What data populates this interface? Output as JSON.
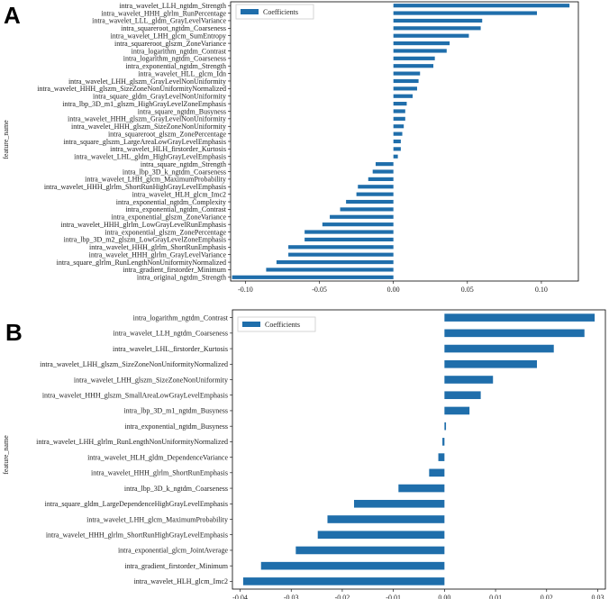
{
  "colors": {
    "bar": "#1f6eab",
    "axis": "#000000"
  },
  "chart_data": [
    {
      "panel": "A",
      "type": "bar",
      "orientation": "horizontal",
      "legend": "Coefficients",
      "legend_position": "top-left",
      "ylabel": "feature_name",
      "xlim": [
        -0.11,
        0.125
      ],
      "xticks": [
        -0.1,
        -0.05,
        0.0,
        0.05,
        0.1
      ],
      "xtick_labels": [
        "-0.10",
        "-0.05",
        "0.00",
        "0.05",
        "0.10"
      ],
      "categories": [
        "intra_wavelet_LLH_ngtdm_Strength",
        "intra_wavelet_HHH_glrlm_RunPercentage",
        "intra_wavelet_LLL_gldm_GrayLevelVariance",
        "intra_squareroot_ngtdm_Coarseness",
        "intra_wavelet_LHH_glcm_SumEntropy",
        "intra_squareroot_glszm_ZoneVariance",
        "intra_logarithm_ngtdm_Contrast",
        "intra_logarithm_ngtdm_Coarseness",
        "intra_exponential_ngtdm_Strength",
        "intra_wavelet_HLL_glcm_Idn",
        "intra_wavelet_LHH_glszm_GrayLevelNonUniformity",
        "intra_wavelet_HHH_glszm_SizeZoneNonUniformityNormalized",
        "intra_square_gldm_GrayLevelNonUniformity",
        "intra_lbp_3D_m1_glszm_HighGrayLevelZoneEmphasis",
        "intra_square_ngtdm_Busyness",
        "intra_wavelet_HHH_glszm_GrayLevelNonUniformity",
        "intra_wavelet_HHH_glszm_SizeZoneNonUniformity",
        "intra_squareroot_glszm_ZonePercentage",
        "intra_square_glszm_LargeAreaLowGrayLevelEmphasis",
        "intra_wavelet_HLH_firstorder_Kurtosis",
        "intra_wavelet_LHL_gldm_HighGrayLevelEmphasis",
        "intra_square_ngtdm_Strength",
        "intra_lbp_3D_k_ngtdm_Coarseness",
        "intra_wavelet_LHH_glcm_MaximumProbability",
        "intra_wavelet_HHH_glrlm_ShortRunHighGrayLevelEmphasis",
        "intra_wavelet_HLH_glcm_Imc2",
        "intra_exponential_ngtdm_Complexity",
        "intra_exponential_ngtdm_Contrast",
        "intra_exponential_glszm_ZoneVariance",
        "intra_wavelet_HHH_glrlm_LowGrayLevelRunEmphasis",
        "intra_exponential_glszm_ZonePercentage",
        "intra_lbp_3D_m2_glszm_LowGrayLevelZoneEmphasis",
        "intra_wavelet_HHH_glrlm_ShortRunEmphasis",
        "intra_wavelet_HHH_glrlm_GrayLevelVariance",
        "intra_square_glrlm_RunLengthNonUniformityNormalized",
        "intra_gradient_firstorder_Minimum",
        "intra_original_ngtdm_Strength"
      ],
      "values": [
        0.119,
        0.097,
        0.06,
        0.059,
        0.051,
        0.038,
        0.036,
        0.028,
        0.027,
        0.018,
        0.017,
        0.016,
        0.013,
        0.009,
        0.008,
        0.008,
        0.007,
        0.006,
        0.005,
        0.005,
        0.003,
        -0.012,
        -0.014,
        -0.017,
        -0.024,
        -0.025,
        -0.032,
        -0.036,
        -0.043,
        -0.048,
        -0.06,
        -0.06,
        -0.071,
        -0.071,
        -0.079,
        -0.086,
        -0.109
      ]
    },
    {
      "panel": "B",
      "type": "bar",
      "orientation": "horizontal",
      "legend": "Coefficients",
      "legend_position": "top-left",
      "ylabel": "feature_name",
      "xlim": [
        -0.0415,
        0.0315
      ],
      "xticks": [
        -0.04,
        -0.03,
        -0.02,
        -0.01,
        0.0,
        0.01,
        0.02,
        0.03
      ],
      "xtick_labels": [
        "-0.04",
        "-0.03",
        "-0.02",
        "-0.01",
        "0.00",
        "0.01",
        "0.02",
        "0.03"
      ],
      "categories": [
        "intra_logarithm_ngtdm_Contrast",
        "intra_wavelet_LLH_ngtdm_Coarseness",
        "intra_wavelet_LHL_firstorder_Kurtosis",
        "intra_wavelet_LHH_glszm_SizeZoneNonUniformityNormalized",
        "intra_wavelet_LHH_glszm_SizeZoneNonUniformity",
        "intra_wavelet_HHH_glszm_SmallAreaLowGrayLevelEmphasis",
        "intra_lbp_3D_m1_ngtdm_Busyness",
        "intra_exponential_ngtdm_Busyness",
        "intra_wavelet_LHH_glrlm_RunLengthNonUniformityNormalized",
        "intra_wavelet_HLH_gldm_DependenceVariance",
        "intra_wavelet_HHH_glrlm_ShortRunEmphasis",
        "intra_lbp_3D_k_ngtdm_Coarseness",
        "intra_square_gldm_LargeDependenceHighGrayLevelEmphasis",
        "intra_wavelet_LHH_glcm_MaximumProbability",
        "intra_wavelet_HHH_glrlm_ShortRunHighGrayLevelEmphasis",
        "intra_exponential_glcm_JointAverage",
        "intra_gradient_firstorder_Minimum",
        "intra_wavelet_HLH_glcm_Imc2"
      ],
      "values": [
        0.0294,
        0.0274,
        0.0214,
        0.0181,
        0.0095,
        0.0071,
        0.0049,
        0.0003,
        -0.0004,
        -0.0012,
        -0.003,
        -0.009,
        -0.0177,
        -0.0229,
        -0.0248,
        -0.0291,
        -0.0359,
        -0.0394
      ]
    }
  ]
}
